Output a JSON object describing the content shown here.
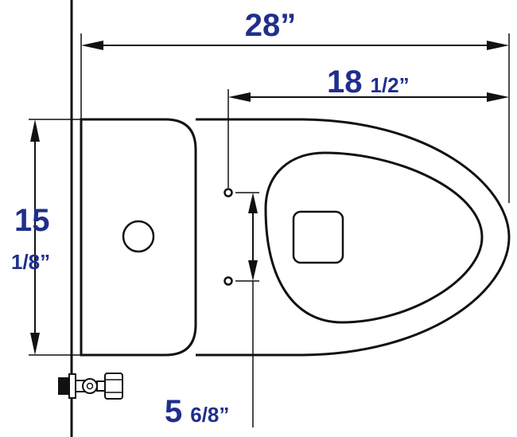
{
  "dimensions": {
    "overall_length": "28”",
    "rough_in_whole": "18",
    "rough_in_fraction": "1/2”",
    "width_whole": "15",
    "width_fraction": "1/8”",
    "bolt_spacing_whole": "5",
    "bolt_spacing_fraction": "6/8”"
  },
  "colors": {
    "dimension_text": "#1f2f8c",
    "line": "#111111"
  },
  "icons": [
    "shutoff-valve-icon"
  ]
}
